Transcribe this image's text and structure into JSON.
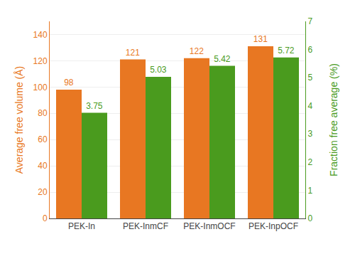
{
  "chart_data": {
    "type": "bar",
    "categories": [
      "PEK-In",
      "PEK-InmCF",
      "PEK-InmOCF",
      "PEK-InpOCF"
    ],
    "series": [
      {
        "color": "#E87722",
        "values": [
          98,
          121,
          122,
          131
        ]
      },
      {
        "color": "#4A9B1E",
        "values": [
          3.75,
          5.03,
          5.42,
          5.72
        ],
        "axis": "y2"
      }
    ],
    "ylabel": "Average free volume (Å)",
    "y2label": "Fraction free average (%)",
    "ylim": [
      0,
      150
    ],
    "yticks": [
      0,
      20,
      40,
      60,
      80,
      100,
      120,
      140
    ],
    "y2lim": [
      0,
      7
    ],
    "y2ticks": [
      0,
      1,
      2,
      3,
      4,
      5,
      6,
      7
    ],
    "data_labels": true
  }
}
